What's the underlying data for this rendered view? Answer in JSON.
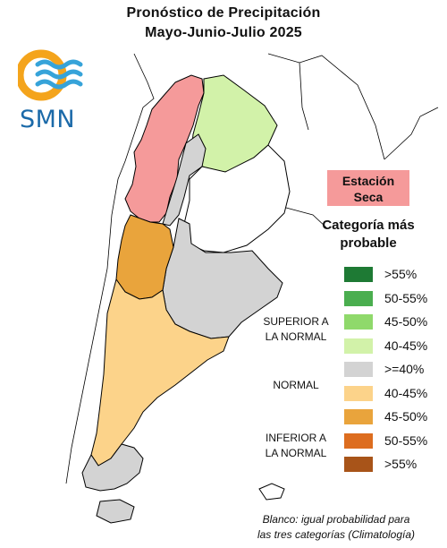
{
  "title": {
    "line1": "Pronóstico de Precipitación",
    "line2": "Mayo-Junio-Julio 2025"
  },
  "logo": {
    "text": "SMN",
    "colors": {
      "sun": "#f4a41c",
      "waves": "#36a3d9",
      "text": "#1b6aa9"
    }
  },
  "dry_season": {
    "label_line1": "Estación",
    "label_line2": "Seca",
    "color": "#f59a9a"
  },
  "legend": {
    "title_line1": "Categoría más",
    "title_line2": "probable",
    "items": [
      {
        "label": ">55%",
        "color": "#1e7a34",
        "group": "superior"
      },
      {
        "label": "50-55%",
        "color": "#4aae4f",
        "group": "superior"
      },
      {
        "label": "45-50%",
        "color": "#8fd96b",
        "group": "superior"
      },
      {
        "label": "40-45%",
        "color": "#d2f2a9",
        "group": "superior"
      },
      {
        "label": ">=40%",
        "color": "#d3d3d3",
        "group": "normal"
      },
      {
        "label": "40-45%",
        "color": "#fcd38a",
        "group": "inferior"
      },
      {
        "label": "45-50%",
        "color": "#e9a43c",
        "group": "inferior"
      },
      {
        "label": "50-55%",
        "color": "#dd6d1f",
        "group": "inferior"
      },
      {
        "label": ">55%",
        "color": "#a85419",
        "group": "inferior"
      }
    ],
    "groups": {
      "superior_line1": "SUPERIOR A",
      "superior_line2": "LA NORMAL",
      "normal": "NORMAL",
      "inferior_line1": "INFERIOR A",
      "inferior_line2": "LA NORMAL"
    }
  },
  "footnote": {
    "line1": "Blanco: igual probabilidad para",
    "line2": "las tres categorías (Climatología)"
  },
  "map_colors": {
    "dry": "#f59a9a",
    "sup_40_45": "#d2f2a9",
    "normal": "#d3d3d3",
    "inf_40_45": "#fcd38a",
    "inf_45_50": "#e9a43c",
    "white": "#ffffff",
    "border": "#000000"
  }
}
